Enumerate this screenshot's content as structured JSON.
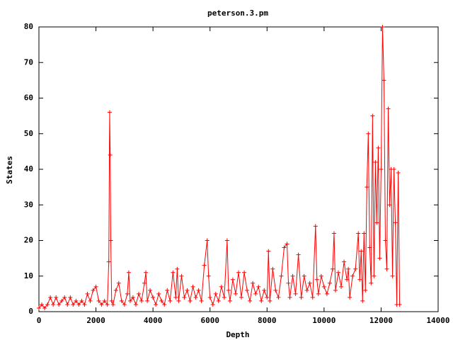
{
  "chart_data": {
    "type": "line",
    "title": "peterson.3.pm",
    "x_label": "Depth",
    "y_label": "States",
    "xlim": [
      0,
      14000
    ],
    "ylim": [
      0,
      80
    ],
    "xticks": [
      0,
      2000,
      4000,
      6000,
      8000,
      10000,
      12000,
      14000
    ],
    "yticks": [
      0,
      10,
      20,
      30,
      40,
      50,
      60,
      70,
      80
    ],
    "x": [
      0,
      100,
      200,
      300,
      400,
      500,
      600,
      700,
      800,
      900,
      1000,
      1100,
      1200,
      1300,
      1400,
      1500,
      1600,
      1700,
      1800,
      1900,
      2000,
      2100,
      2200,
      2300,
      2400,
      2450,
      2480,
      2500,
      2520,
      2550,
      2600,
      2700,
      2800,
      2900,
      3000,
      3100,
      3150,
      3200,
      3300,
      3400,
      3500,
      3600,
      3700,
      3750,
      3800,
      3900,
      4000,
      4100,
      4200,
      4300,
      4400,
      4500,
      4600,
      4700,
      4800,
      4850,
      4900,
      5000,
      5100,
      5200,
      5300,
      5400,
      5500,
      5600,
      5700,
      5800,
      5900,
      5950,
      6000,
      6100,
      6200,
      6300,
      6400,
      6500,
      6600,
      6650,
      6700,
      6800,
      6900,
      7000,
      7100,
      7200,
      7300,
      7400,
      7500,
      7600,
      7700,
      7800,
      7900,
      8000,
      8050,
      8100,
      8200,
      8300,
      8400,
      8500,
      8600,
      8700,
      8750,
      8800,
      8900,
      9000,
      9100,
      9200,
      9300,
      9400,
      9500,
      9600,
      9700,
      9750,
      9800,
      9900,
      10000,
      10100,
      10200,
      10300,
      10350,
      10400,
      10500,
      10600,
      10700,
      10800,
      10850,
      10900,
      11000,
      11100,
      11200,
      11250,
      11300,
      11350,
      11400,
      11450,
      11500,
      11550,
      11600,
      11650,
      11700,
      11750,
      11800,
      11850,
      11900,
      11950,
      12000,
      12050,
      12100,
      12150,
      12200,
      12250,
      12300,
      12350,
      12400,
      12450,
      12500,
      12550,
      12600,
      12650
    ],
    "series": [
      {
        "name": "States",
        "color": "#ff0000",
        "values": [
          1,
          2,
          1,
          2,
          4,
          2,
          4,
          2,
          3,
          4,
          2,
          4,
          2,
          3,
          2,
          3,
          2,
          5,
          3,
          6,
          7,
          3,
          2,
          3,
          2,
          14,
          56,
          44,
          20,
          3,
          2,
          6,
          8,
          3,
          2,
          5,
          11,
          3,
          4,
          2,
          5,
          3,
          8,
          11,
          3,
          6,
          4,
          2,
          5,
          3,
          2,
          6,
          3,
          11,
          4,
          12,
          3,
          10,
          4,
          6,
          3,
          7,
          4,
          6,
          3,
          13,
          20,
          10,
          4,
          2,
          5,
          3,
          7,
          4,
          20,
          6,
          3,
          9,
          5,
          11,
          4,
          11,
          6,
          3,
          8,
          5,
          7,
          3,
          6,
          4,
          17,
          3,
          12,
          6,
          4,
          10,
          18,
          19,
          8,
          4,
          10,
          5,
          16,
          4,
          10,
          6,
          8,
          4,
          24,
          9,
          5,
          10,
          7,
          5,
          8,
          12,
          22,
          6,
          11,
          7,
          14,
          9,
          12,
          4,
          10,
          12,
          22,
          9,
          17,
          3,
          22,
          6,
          35,
          50,
          18,
          8,
          55,
          10,
          42,
          25,
          46,
          15,
          40,
          80,
          65,
          20,
          12,
          57,
          30,
          40,
          10,
          40,
          25,
          2,
          39,
          2
        ]
      }
    ]
  }
}
